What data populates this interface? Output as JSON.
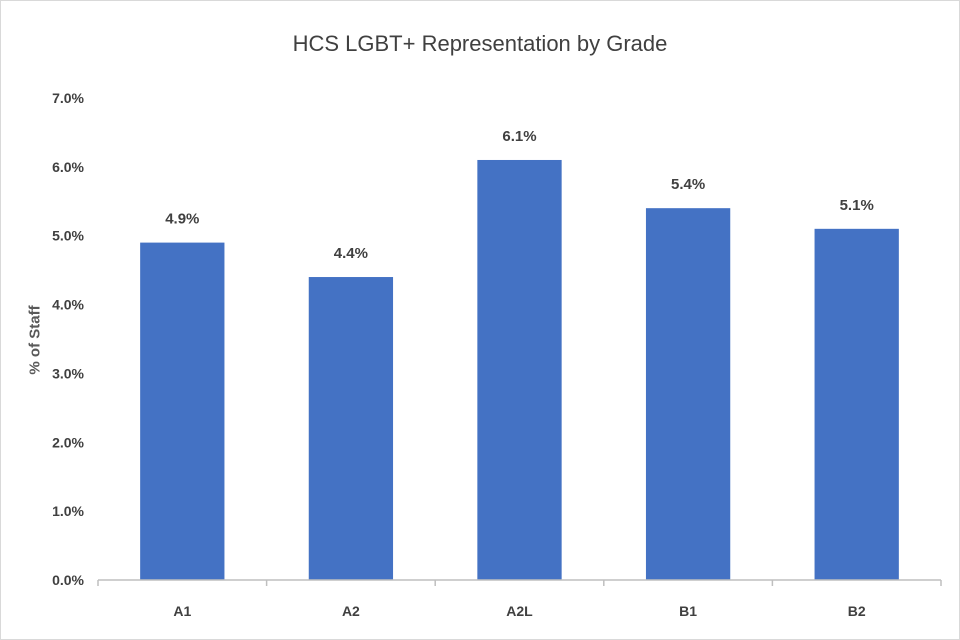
{
  "chart_data": {
    "type": "bar",
    "title": "HCS LGBT+  Representation by Grade",
    "xlabel": "",
    "ylabel": "% of Staff",
    "categories": [
      "A1",
      "A2",
      "A2L",
      "B1",
      "B2"
    ],
    "values": [
      4.9,
      4.4,
      6.1,
      5.4,
      5.1
    ],
    "data_labels": [
      "4.9%",
      "4.4%",
      "6.1%",
      "5.4%",
      "5.1%"
    ],
    "ylim": [
      0,
      7
    ],
    "y_ticks": [
      "0.0%",
      "1.0%",
      "2.0%",
      "3.0%",
      "4.0%",
      "5.0%",
      "6.0%",
      "7.0%"
    ],
    "grid": false,
    "legend": "none",
    "bar_color": "#4472c4",
    "axis_color": "#bfbfbf",
    "text_color": "#404040"
  }
}
